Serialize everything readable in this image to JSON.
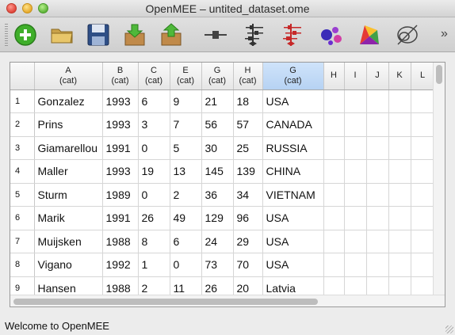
{
  "window": {
    "title": "OpenMEE – untited_dataset.ome"
  },
  "toolbar": {
    "buttons": [
      {
        "name": "add-icon"
      },
      {
        "name": "open-folder-icon"
      },
      {
        "name": "save-icon"
      },
      {
        "name": "import-icon"
      },
      {
        "name": "export-icon"
      },
      {
        "name": "line-icon"
      },
      {
        "name": "forest-plot-icon"
      },
      {
        "name": "forest-plot-red-icon"
      },
      {
        "name": "bubble-plot-icon"
      },
      {
        "name": "polygon-chart-icon"
      },
      {
        "name": "funnel-icon"
      }
    ],
    "more": "»"
  },
  "table": {
    "columns": [
      {
        "letter": "A",
        "type": "(cat)"
      },
      {
        "letter": "B",
        "type": "(cat)"
      },
      {
        "letter": "C",
        "type": "(cat)"
      },
      {
        "letter": "E",
        "type": "(cat)"
      },
      {
        "letter": "G",
        "type": "(cat)"
      },
      {
        "letter": "H",
        "type": "(cat)"
      },
      {
        "letter": "G",
        "type": "(cat)",
        "selected": true
      },
      {
        "letter": "H",
        "type": ""
      },
      {
        "letter": "I",
        "type": ""
      },
      {
        "letter": "J",
        "type": ""
      },
      {
        "letter": "K",
        "type": ""
      },
      {
        "letter": "L",
        "type": ""
      }
    ],
    "rows": [
      {
        "num": "1",
        "cells": [
          "Gonzalez",
          "1993",
          "6",
          "9",
          "21",
          "18",
          "USA"
        ]
      },
      {
        "num": "2",
        "cells": [
          "Prins",
          "1993",
          "3",
          "7",
          "56",
          "57",
          "CANADA"
        ]
      },
      {
        "num": "3",
        "cells": [
          "Giamarellou",
          "1991",
          "0",
          "5",
          "30",
          "25",
          "RUSSIA"
        ]
      },
      {
        "num": "4",
        "cells": [
          "Maller",
          "1993",
          "19",
          "13",
          "145",
          "139",
          "CHINA"
        ]
      },
      {
        "num": "5",
        "cells": [
          "Sturm",
          "1989",
          "0",
          "2",
          "36",
          "34",
          "VIETNAM"
        ]
      },
      {
        "num": "6",
        "cells": [
          "Marik",
          "1991",
          "26",
          "49",
          "129",
          "96",
          "USA"
        ]
      },
      {
        "num": "7",
        "cells": [
          "Muijsken",
          "1988",
          "8",
          "6",
          "24",
          "29",
          "USA"
        ]
      },
      {
        "num": "8",
        "cells": [
          "Vigano",
          "1992",
          "1",
          "0",
          "73",
          "70",
          "USA"
        ]
      },
      {
        "num": "9",
        "cells": [
          "Hansen",
          "1988",
          "2",
          "11",
          "26",
          "20",
          "Latvia"
        ]
      }
    ]
  },
  "status": {
    "text": "Welcome to OpenMEE"
  }
}
